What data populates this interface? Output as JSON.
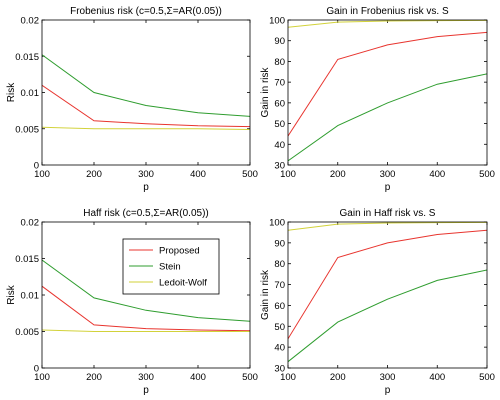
{
  "colors": {
    "proposed": "#e8352f",
    "stein": "#2f9d2f",
    "ledoit_wolf": "#d2d23a"
  },
  "legend": {
    "entries": [
      {
        "name": "Proposed",
        "color": "#e8352f"
      },
      {
        "name": "Stein",
        "color": "#2f9d2f"
      },
      {
        "name": "Ledoit-Wolf",
        "color": "#d2d23a"
      }
    ],
    "placement": "inside Haff risk panel, top-right"
  },
  "chart_data": [
    {
      "type": "line",
      "title": "Frobenius risk (c=0.5,Σ=AR(0.05))",
      "xlabel": "p",
      "ylabel": "Risk",
      "x": [
        100,
        200,
        300,
        400,
        500
      ],
      "xlim": [
        100,
        500
      ],
      "ylim": [
        0,
        0.02
      ],
      "xticks": [
        "100",
        "200",
        "300",
        "400",
        "500"
      ],
      "yticks": [
        "0",
        "0.005",
        "0.01",
        "0.015",
        "0.02"
      ],
      "series": [
        {
          "name": "Proposed",
          "color": "#e8352f",
          "values": [
            0.011,
            0.0061,
            0.0057,
            0.0054,
            0.0053
          ]
        },
        {
          "name": "Stein",
          "color": "#2f9d2f",
          "values": [
            0.0152,
            0.01,
            0.0082,
            0.0072,
            0.0067
          ]
        },
        {
          "name": "Ledoit-Wolf",
          "color": "#d2d23a",
          "values": [
            0.0052,
            0.005,
            0.005,
            0.005,
            0.0049
          ]
        }
      ]
    },
    {
      "type": "line",
      "title": "Gain in Frobenius risk vs. S",
      "xlabel": "p",
      "ylabel": "Gain in risk",
      "x": [
        100,
        200,
        300,
        400,
        500
      ],
      "xlim": [
        100,
        500
      ],
      "ylim": [
        30,
        100
      ],
      "xticks": [
        "100",
        "200",
        "300",
        "400",
        "500"
      ],
      "yticks": [
        "30",
        "40",
        "50",
        "60",
        "70",
        "80",
        "90",
        "100"
      ],
      "series": [
        {
          "name": "Proposed",
          "color": "#e8352f",
          "values": [
            44,
            81,
            88,
            92,
            94
          ]
        },
        {
          "name": "Stein",
          "color": "#2f9d2f",
          "values": [
            32,
            49,
            60,
            69,
            74
          ]
        },
        {
          "name": "Ledoit-Wolf",
          "color": "#d2d23a",
          "values": [
            96.5,
            99,
            99.5,
            99.7,
            99.8
          ]
        }
      ]
    },
    {
      "type": "line",
      "title": "Haff risk (c=0.5,Σ=AR(0.05))",
      "xlabel": "p",
      "ylabel": "Risk",
      "x": [
        100,
        200,
        300,
        400,
        500
      ],
      "xlim": [
        100,
        500
      ],
      "ylim": [
        0,
        0.02
      ],
      "xticks": [
        "100",
        "200",
        "300",
        "400",
        "500"
      ],
      "yticks": [
        "0",
        "0.005",
        "0.01",
        "0.015",
        "0.02"
      ],
      "series": [
        {
          "name": "Proposed",
          "color": "#e8352f",
          "values": [
            0.0112,
            0.0059,
            0.0054,
            0.0052,
            0.0051
          ]
        },
        {
          "name": "Stein",
          "color": "#2f9d2f",
          "values": [
            0.0148,
            0.0096,
            0.0079,
            0.0069,
            0.0064
          ]
        },
        {
          "name": "Ledoit-Wolf",
          "color": "#d2d23a",
          "values": [
            0.0052,
            0.005,
            0.005,
            0.005,
            0.005
          ]
        }
      ]
    },
    {
      "type": "line",
      "title": "Gain in Haff risk vs. S",
      "xlabel": "p",
      "ylabel": "Gain in risk",
      "x": [
        100,
        200,
        300,
        400,
        500
      ],
      "xlim": [
        100,
        500
      ],
      "ylim": [
        30,
        100
      ],
      "xticks": [
        "100",
        "200",
        "300",
        "400",
        "500"
      ],
      "yticks": [
        "30",
        "40",
        "50",
        "60",
        "70",
        "80",
        "90",
        "100"
      ],
      "series": [
        {
          "name": "Proposed",
          "color": "#e8352f",
          "values": [
            44,
            83,
            90,
            94,
            96
          ]
        },
        {
          "name": "Stein",
          "color": "#2f9d2f",
          "values": [
            33,
            52,
            63,
            72,
            77
          ]
        },
        {
          "name": "Ledoit-Wolf",
          "color": "#d2d23a",
          "values": [
            96,
            99,
            99.5,
            99.7,
            99.8
          ]
        }
      ]
    }
  ]
}
